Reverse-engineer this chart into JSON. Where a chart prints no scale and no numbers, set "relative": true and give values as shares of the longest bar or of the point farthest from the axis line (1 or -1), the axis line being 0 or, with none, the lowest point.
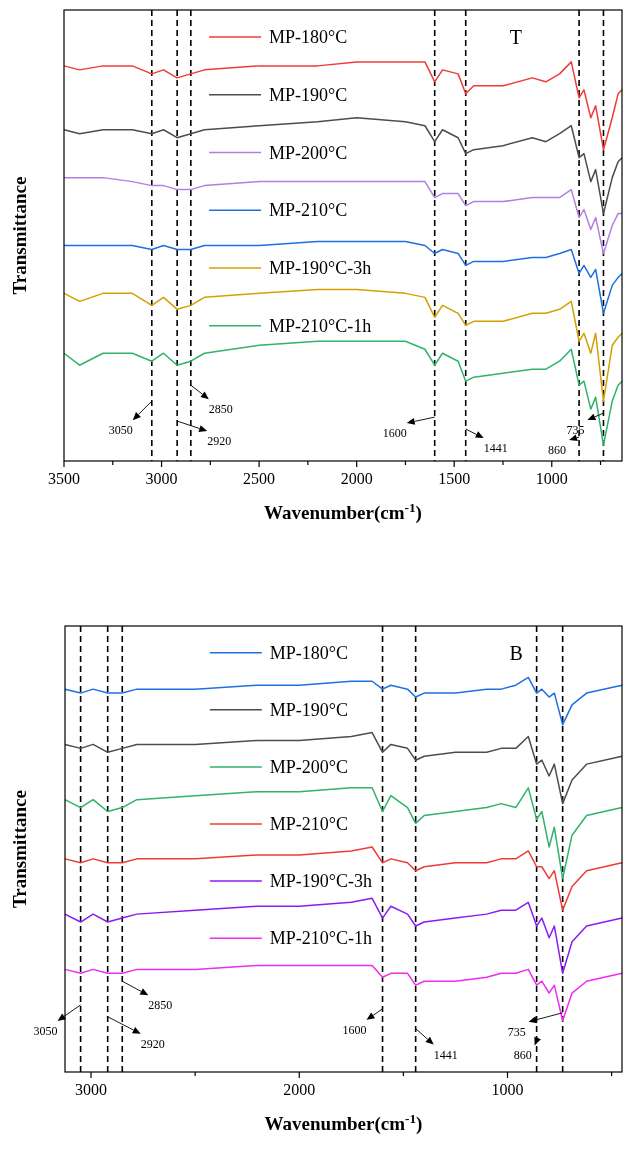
{
  "chart_data": [
    {
      "type": "line",
      "relative": true,
      "xlabel": "Wavenumber(cm$^{-1}$)",
      "ylabel": "Transmittance",
      "legend": "top left",
      "tick_labels": "x",
      "xlim": [
        3500,
        640
      ],
      "xticks": [
        3500,
        {
          "value": 3250,
          "label": null
        },
        3000,
        {
          "value": 2750,
          "label": null
        },
        2500,
        {
          "value": 2250,
          "label": null
        },
        2000,
        {
          "value": 1750,
          "label": null
        },
        1500,
        {
          "value": 1250,
          "label": null
        },
        1000,
        {
          "value": 750,
          "label": null
        }
      ],
      "x": [
        3500,
        3420,
        3300,
        3150,
        3050,
        2990,
        2920,
        2850,
        2780,
        2500,
        2200,
        2000,
        1750,
        1650,
        1600,
        1560,
        1480,
        1441,
        1400,
        1250,
        1100,
        1030,
        960,
        900,
        860,
        835,
        800,
        775,
        735,
        690,
        660,
        640
      ],
      "series": [
        {
          "name": "MP-180°C",
          "color": "#ef3b36",
          "values": [
            0.99,
            0.98,
            0.99,
            0.99,
            0.97,
            0.98,
            0.96,
            0.97,
            0.98,
            0.99,
            0.99,
            1.0,
            1.0,
            1.0,
            0.95,
            0.98,
            0.97,
            0.92,
            0.94,
            0.94,
            0.96,
            0.95,
            0.97,
            1.0,
            0.91,
            0.93,
            0.86,
            0.89,
            0.78,
            0.86,
            0.92,
            0.93
          ]
        },
        {
          "name": "MP-190°C",
          "color": "#4d4d4d",
          "values": [
            0.83,
            0.82,
            0.83,
            0.83,
            0.82,
            0.83,
            0.81,
            0.82,
            0.83,
            0.84,
            0.85,
            0.86,
            0.85,
            0.84,
            0.8,
            0.83,
            0.81,
            0.77,
            0.78,
            0.79,
            0.81,
            0.8,
            0.82,
            0.84,
            0.76,
            0.77,
            0.7,
            0.73,
            0.62,
            0.71,
            0.75,
            0.76
          ]
        },
        {
          "name": "MP-200°C",
          "color": "#b27fe0",
          "values": [
            0.71,
            0.71,
            0.71,
            0.7,
            0.69,
            0.69,
            0.68,
            0.68,
            0.69,
            0.7,
            0.7,
            0.7,
            0.7,
            0.7,
            0.66,
            0.67,
            0.67,
            0.64,
            0.65,
            0.65,
            0.66,
            0.66,
            0.66,
            0.68,
            0.61,
            0.63,
            0.58,
            0.61,
            0.52,
            0.59,
            0.62,
            0.62
          ]
        },
        {
          "name": "MP-210°C",
          "color": "#1f6fe0",
          "values": [
            0.54,
            0.54,
            0.54,
            0.54,
            0.53,
            0.54,
            0.53,
            0.53,
            0.54,
            0.54,
            0.55,
            0.55,
            0.55,
            0.54,
            0.52,
            0.53,
            0.52,
            0.49,
            0.5,
            0.5,
            0.51,
            0.51,
            0.52,
            0.53,
            0.47,
            0.49,
            0.46,
            0.48,
            0.37,
            0.44,
            0.46,
            0.47
          ]
        },
        {
          "name": "MP-190°C-3h",
          "color": "#d4a000",
          "values": [
            0.42,
            0.4,
            0.42,
            0.42,
            0.39,
            0.41,
            0.38,
            0.39,
            0.41,
            0.42,
            0.43,
            0.43,
            0.42,
            0.41,
            0.36,
            0.39,
            0.37,
            0.34,
            0.35,
            0.35,
            0.37,
            0.37,
            0.38,
            0.4,
            0.3,
            0.32,
            0.27,
            0.32,
            0.15,
            0.29,
            0.31,
            0.32
          ]
        },
        {
          "name": "MP-210°C-1h",
          "color": "#2fb36b",
          "values": [
            0.27,
            0.24,
            0.27,
            0.27,
            0.25,
            0.27,
            0.24,
            0.25,
            0.27,
            0.29,
            0.3,
            0.3,
            0.3,
            0.28,
            0.24,
            0.27,
            0.25,
            0.2,
            0.21,
            0.22,
            0.23,
            0.23,
            0.25,
            0.28,
            0.19,
            0.2,
            0.13,
            0.16,
            0.04,
            0.15,
            0.19,
            0.2
          ]
        }
      ],
      "ref_lines": [
        {
          "axis": "x",
          "value": 3050,
          "line_style": "dashed",
          "color": "#000000"
        },
        {
          "axis": "x",
          "value": 2920,
          "line_style": "dashed",
          "color": "#000000"
        },
        {
          "axis": "x",
          "value": 2850,
          "line_style": "dashed",
          "color": "#000000"
        },
        {
          "axis": "x",
          "value": 1600,
          "line_style": "dashed",
          "color": "#000000"
        },
        {
          "axis": "x",
          "value": 1441,
          "line_style": "dashed",
          "color": "#000000"
        },
        {
          "axis": "x",
          "value": 860,
          "line_style": "dashed",
          "color": "#000000"
        },
        {
          "axis": "x",
          "value": 735,
          "line_style": "dashed",
          "color": "#000000"
        }
      ],
      "annotations": [
        "T",
        {
          "text": "3050",
          "x": 3050,
          "y": 0.15
        },
        {
          "text": "2920",
          "x": 2920,
          "y": 0.1
        },
        {
          "text": "2850",
          "x": 2850,
          "y": 0.19
        },
        {
          "text": "1600",
          "x": 1600,
          "y": 0.11
        },
        {
          "text": "1441",
          "x": 1441,
          "y": 0.08
        },
        {
          "text": "860",
          "x": 860,
          "y": 0.06
        },
        {
          "text": "735",
          "x": 735,
          "y": 0.12
        }
      ]
    },
    {
      "type": "line",
      "relative": true,
      "xlabel": "Wavenumber(cm$^{-1}$)",
      "ylabel": "Transmittance",
      "legend": "top left",
      "tick_labels": "x",
      "xlim": [
        3125,
        450
      ],
      "xticks": [
        3000,
        {
          "value": 2500,
          "label": null
        },
        2000,
        {
          "value": 1500,
          "label": null
        },
        1000,
        {
          "value": 500,
          "label": null
        }
      ],
      "x": [
        3125,
        3050,
        2990,
        2920,
        2850,
        2780,
        2500,
        2200,
        2000,
        1750,
        1650,
        1600,
        1560,
        1480,
        1441,
        1400,
        1250,
        1100,
        1030,
        960,
        900,
        860,
        835,
        800,
        775,
        735,
        690,
        620,
        450
      ],
      "series": [
        {
          "name": "MP-180°C",
          "color": "#1f6fe0",
          "values": [
            0.97,
            0.96,
            0.97,
            0.96,
            0.96,
            0.97,
            0.97,
            0.98,
            0.98,
            0.99,
            0.99,
            0.97,
            0.98,
            0.97,
            0.95,
            0.96,
            0.96,
            0.97,
            0.97,
            0.98,
            1.0,
            0.96,
            0.97,
            0.95,
            0.96,
            0.88,
            0.93,
            0.96,
            0.98
          ]
        },
        {
          "name": "MP-190°C",
          "color": "#4d4d4d",
          "values": [
            0.83,
            0.82,
            0.83,
            0.81,
            0.82,
            0.83,
            0.83,
            0.84,
            0.84,
            0.85,
            0.86,
            0.81,
            0.83,
            0.82,
            0.79,
            0.8,
            0.81,
            0.81,
            0.82,
            0.82,
            0.85,
            0.78,
            0.79,
            0.75,
            0.78,
            0.68,
            0.74,
            0.78,
            0.8
          ]
        },
        {
          "name": "MP-200°C",
          "color": "#2fb36b",
          "values": [
            0.69,
            0.67,
            0.69,
            0.66,
            0.67,
            0.69,
            0.7,
            0.71,
            0.71,
            0.72,
            0.72,
            0.66,
            0.7,
            0.67,
            0.63,
            0.65,
            0.66,
            0.67,
            0.68,
            0.67,
            0.72,
            0.64,
            0.66,
            0.57,
            0.62,
            0.49,
            0.6,
            0.65,
            0.67
          ]
        },
        {
          "name": "MP-210°C",
          "color": "#ef3b36",
          "values": [
            0.54,
            0.53,
            0.54,
            0.53,
            0.53,
            0.54,
            0.54,
            0.55,
            0.55,
            0.56,
            0.57,
            0.53,
            0.54,
            0.53,
            0.51,
            0.52,
            0.53,
            0.53,
            0.54,
            0.54,
            0.56,
            0.52,
            0.52,
            0.49,
            0.51,
            0.41,
            0.47,
            0.51,
            0.53
          ]
        },
        {
          "name": "MP-190°C-3h",
          "color": "#8b1cf0",
          "values": [
            0.4,
            0.38,
            0.4,
            0.38,
            0.39,
            0.4,
            0.41,
            0.42,
            0.42,
            0.43,
            0.44,
            0.39,
            0.42,
            0.4,
            0.37,
            0.38,
            0.39,
            0.4,
            0.41,
            0.41,
            0.43,
            0.37,
            0.39,
            0.34,
            0.37,
            0.25,
            0.33,
            0.37,
            0.39
          ]
        },
        {
          "name": "MP-210°C-1h",
          "color": "#f02bf0",
          "values": [
            0.26,
            0.25,
            0.26,
            0.25,
            0.25,
            0.26,
            0.26,
            0.27,
            0.27,
            0.27,
            0.27,
            0.24,
            0.25,
            0.25,
            0.22,
            0.23,
            0.23,
            0.24,
            0.25,
            0.25,
            0.26,
            0.22,
            0.23,
            0.2,
            0.22,
            0.13,
            0.2,
            0.23,
            0.25
          ]
        }
      ],
      "ref_lines": [
        {
          "axis": "x",
          "value": 3050,
          "line_style": "dashed",
          "color": "#000000"
        },
        {
          "axis": "x",
          "value": 2920,
          "line_style": "dashed",
          "color": "#000000"
        },
        {
          "axis": "x",
          "value": 2850,
          "line_style": "dashed",
          "color": "#000000"
        },
        {
          "axis": "x",
          "value": 1600,
          "line_style": "dashed",
          "color": "#000000"
        },
        {
          "axis": "x",
          "value": 1441,
          "line_style": "dashed",
          "color": "#000000"
        },
        {
          "axis": "x",
          "value": 860,
          "line_style": "dashed",
          "color": "#000000"
        },
        {
          "axis": "x",
          "value": 735,
          "line_style": "dashed",
          "color": "#000000"
        }
      ],
      "annotations": [
        "B",
        {
          "text": "3050",
          "x": 3050,
          "y": 0.17
        },
        {
          "text": "2920",
          "x": 2920,
          "y": 0.14
        },
        {
          "text": "2850",
          "x": 2850,
          "y": 0.23
        },
        {
          "text": "1600",
          "x": 1600,
          "y": 0.16
        },
        {
          "text": "1441",
          "x": 1441,
          "y": 0.11
        },
        {
          "text": "860",
          "x": 860,
          "y": 0.08
        },
        {
          "text": "735",
          "x": 735,
          "y": 0.15
        }
      ]
    }
  ]
}
